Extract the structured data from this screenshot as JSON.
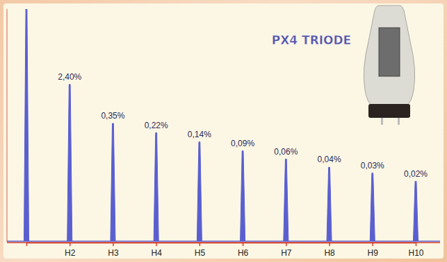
{
  "chart_data": {
    "type": "spike",
    "title": "PX4 TRIODE",
    "categories": [
      null,
      "H2",
      "H3",
      "H4",
      "H5",
      "H6",
      "H7",
      "H8",
      "H9",
      "H10"
    ],
    "values": [
      100,
      2.4,
      0.35,
      0.22,
      0.14,
      0.09,
      0.06,
      0.04,
      0.03,
      0.02
    ],
    "value_labels": [
      null,
      "2,40%",
      "0,35%",
      "0,22%",
      "0,14%",
      "0,09%",
      "0,06%",
      "0,04%",
      "0,03%",
      "0,02%"
    ],
    "color": "#5a5fd0",
    "ylim": [
      0.001,
      100
    ],
    "log": "y",
    "data_labels": true,
    "tick_labels": "x",
    "grid": false
  }
}
